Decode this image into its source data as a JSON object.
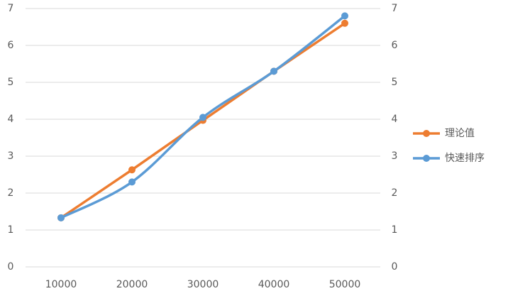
{
  "chart_data": {
    "type": "line",
    "categories": [
      "10000",
      "20000",
      "30000",
      "40000",
      "50000"
    ],
    "series": [
      {
        "name": "理论值",
        "color": "#ED7D31",
        "smooth": false,
        "values": [
          1.33,
          2.63,
          3.97,
          5.3,
          6.6
        ]
      },
      {
        "name": "快速排序",
        "color": "#5B9BD5",
        "smooth": true,
        "values": [
          1.33,
          2.3,
          4.05,
          5.3,
          6.8
        ]
      }
    ],
    "ylim": [
      0,
      7
    ],
    "yticks": [
      0,
      1,
      2,
      3,
      4,
      5,
      6,
      7
    ],
    "y2lim": [
      0,
      7
    ],
    "y2ticks": [
      0,
      1,
      2,
      3,
      4,
      5,
      6,
      7
    ],
    "grid": true,
    "legend": "right"
  }
}
